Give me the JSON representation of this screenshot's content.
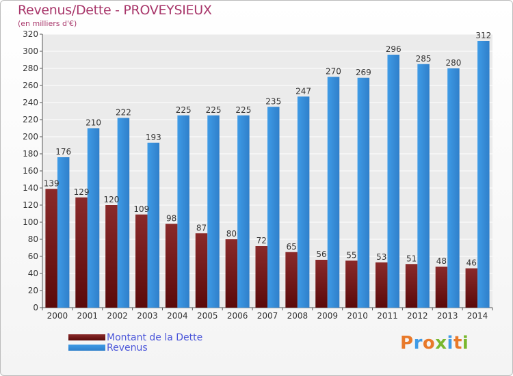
{
  "header": {
    "title": "Revenus/Dette - PROVEYSIEUX",
    "subtitle": "(en milliers d'€)"
  },
  "legend": {
    "debt_label": "Montant de la Dette",
    "revenue_label": "Revenus"
  },
  "logo": {
    "text": "Proxiti"
  },
  "colors": {
    "debt_top": "#8a2a2a",
    "debt_bottom": "#5a0a0a",
    "revenue": "#3f9be6",
    "revenue_dark": "#2f7fca"
  },
  "chart_data": {
    "type": "bar",
    "categories": [
      "2000",
      "2001",
      "2002",
      "2003",
      "2004",
      "2005",
      "2006",
      "2007",
      "2008",
      "2009",
      "2010",
      "2011",
      "2012",
      "2013",
      "2014"
    ],
    "series": [
      {
        "name": "Montant de la Dette",
        "values": [
          139,
          129,
          120,
          109,
          98,
          87,
          80,
          72,
          65,
          56,
          55,
          53,
          51,
          48,
          46
        ]
      },
      {
        "name": "Revenus",
        "values": [
          176,
          210,
          222,
          193,
          225,
          225,
          225,
          235,
          247,
          270,
          269,
          296,
          285,
          280,
          312
        ]
      }
    ],
    "ylim": [
      0,
      320
    ],
    "yticks": [
      0,
      20,
      40,
      60,
      80,
      100,
      120,
      140,
      160,
      180,
      200,
      220,
      240,
      260,
      280,
      300,
      320
    ],
    "grid": true,
    "legend_position": "bottom-left"
  }
}
